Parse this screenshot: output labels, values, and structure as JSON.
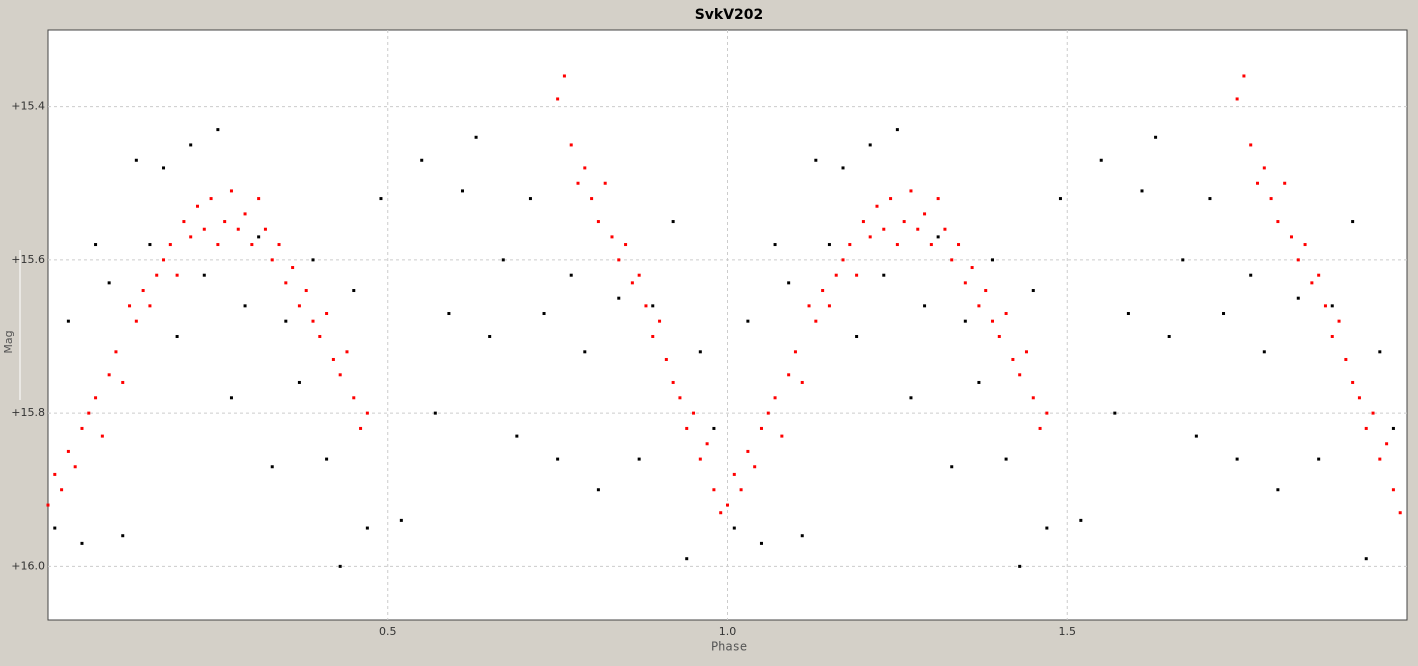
{
  "chart_data": {
    "type": "scatter",
    "title": "SvkV202",
    "x_label": "Phase",
    "y_label": "Mag",
    "xlim": [
      0,
      2
    ],
    "ylim": [
      15.3,
      16.07
    ],
    "y_inverted": true,
    "grid": true,
    "xticks": [
      0.5,
      {
        "value": 1.0,
        "label": "1.0"
      },
      1.5
    ],
    "yticks": [
      {
        "value": 15.4,
        "label": "+15.4"
      },
      {
        "value": 15.6,
        "label": "+15.6"
      },
      {
        "value": 15.8,
        "label": "+15.8"
      },
      {
        "value": 16.0,
        "label": "+16.0"
      }
    ],
    "series": [
      {
        "color": "#000000",
        "x": [
          0.01,
          0.03,
          0.05,
          0.07,
          0.09,
          0.11,
          0.13,
          0.15,
          0.17,
          0.19,
          0.21,
          0.23,
          0.25,
          0.27,
          0.29,
          0.31,
          0.33,
          0.35,
          0.37,
          0.39,
          0.41,
          0.43,
          0.45,
          0.47,
          0.49,
          0.52,
          0.55,
          0.57,
          0.59,
          0.61,
          0.63,
          0.65,
          0.67,
          0.69,
          0.71,
          0.73,
          0.75,
          0.77,
          0.79,
          0.81,
          0.84,
          0.87,
          0.89,
          0.92,
          0.94,
          0.96,
          0.98,
          1.01,
          1.03,
          1.05,
          1.07,
          1.09,
          1.11,
          1.13,
          1.15,
          1.17,
          1.19,
          1.21,
          1.23,
          1.25,
          1.27,
          1.29,
          1.31,
          1.33,
          1.35,
          1.37,
          1.39,
          1.41,
          1.43,
          1.45,
          1.47,
          1.49,
          1.52,
          1.55,
          1.57,
          1.59,
          1.61,
          1.63,
          1.65,
          1.67,
          1.69,
          1.71,
          1.73,
          1.75,
          1.77,
          1.79,
          1.81,
          1.84,
          1.87,
          1.89,
          1.92,
          1.94,
          1.96,
          1.98
        ],
        "values": [
          15.95,
          15.68,
          15.97,
          15.58,
          15.63,
          15.96,
          15.47,
          15.58,
          15.48,
          15.7,
          15.45,
          15.62,
          15.43,
          15.78,
          15.66,
          15.57,
          15.87,
          15.68,
          15.76,
          15.6,
          15.86,
          16.0,
          15.64,
          15.95,
          15.52,
          15.94,
          15.47,
          15.8,
          15.67,
          15.51,
          15.44,
          15.7,
          15.6,
          15.83,
          15.52,
          15.67,
          15.86,
          15.62,
          15.72,
          15.9,
          15.65,
          15.86,
          15.66,
          15.55,
          15.99,
          15.72,
          15.82,
          15.95,
          15.68,
          15.97,
          15.58,
          15.63,
          15.96,
          15.47,
          15.58,
          15.48,
          15.7,
          15.45,
          15.62,
          15.43,
          15.78,
          15.66,
          15.57,
          15.87,
          15.68,
          15.76,
          15.6,
          15.86,
          16.0,
          15.64,
          15.95,
          15.52,
          15.94,
          15.47,
          15.8,
          15.67,
          15.51,
          15.44,
          15.7,
          15.6,
          15.83,
          15.52,
          15.67,
          15.86,
          15.62,
          15.72,
          15.9,
          15.65,
          15.86,
          15.66,
          15.55,
          15.99,
          15.72,
          15.82
        ]
      },
      {
        "color": "#ff0000",
        "x": [
          0.0,
          0.01,
          0.02,
          0.03,
          0.04,
          0.05,
          0.06,
          0.07,
          0.08,
          0.09,
          0.1,
          0.11,
          0.12,
          0.13,
          0.14,
          0.15,
          0.16,
          0.17,
          0.18,
          0.19,
          0.2,
          0.21,
          0.22,
          0.23,
          0.24,
          0.25,
          0.26,
          0.27,
          0.28,
          0.29,
          0.3,
          0.31,
          0.32,
          0.33,
          0.34,
          0.35,
          0.36,
          0.37,
          0.38,
          0.39,
          0.4,
          0.41,
          0.42,
          0.43,
          0.44,
          0.45,
          0.46,
          0.47,
          0.75,
          0.76,
          0.77,
          0.78,
          0.79,
          0.8,
          0.81,
          0.82,
          0.83,
          0.84,
          0.85,
          0.86,
          0.87,
          0.88,
          0.89,
          0.9,
          0.91,
          0.92,
          0.93,
          0.94,
          0.95,
          0.96,
          0.97,
          0.98,
          0.99,
          1.0,
          1.01,
          1.02,
          1.03,
          1.04,
          1.05,
          1.06,
          1.07,
          1.08,
          1.09,
          1.1,
          1.11,
          1.12,
          1.13,
          1.14,
          1.15,
          1.16,
          1.17,
          1.18,
          1.19,
          1.2,
          1.21,
          1.22,
          1.23,
          1.24,
          1.25,
          1.26,
          1.27,
          1.28,
          1.29,
          1.3,
          1.31,
          1.32,
          1.33,
          1.34,
          1.35,
          1.36,
          1.37,
          1.38,
          1.39,
          1.4,
          1.41,
          1.42,
          1.43,
          1.44,
          1.45,
          1.46,
          1.47,
          1.75,
          1.76,
          1.77,
          1.78,
          1.79,
          1.8,
          1.81,
          1.82,
          1.83,
          1.84,
          1.85,
          1.86,
          1.87,
          1.88,
          1.89,
          1.9,
          1.91,
          1.92,
          1.93,
          1.94,
          1.95,
          1.96,
          1.97,
          1.98,
          1.99
        ],
        "values": [
          15.92,
          15.88,
          15.9,
          15.85,
          15.87,
          15.82,
          15.8,
          15.78,
          15.83,
          15.75,
          15.72,
          15.76,
          15.66,
          15.68,
          15.64,
          15.66,
          15.62,
          15.6,
          15.58,
          15.62,
          15.55,
          15.57,
          15.53,
          15.56,
          15.52,
          15.58,
          15.55,
          15.51,
          15.56,
          15.54,
          15.58,
          15.52,
          15.56,
          15.6,
          15.58,
          15.63,
          15.61,
          15.66,
          15.64,
          15.68,
          15.7,
          15.67,
          15.73,
          15.75,
          15.72,
          15.78,
          15.82,
          15.8,
          15.39,
          15.36,
          15.45,
          15.5,
          15.48,
          15.52,
          15.55,
          15.5,
          15.57,
          15.6,
          15.58,
          15.63,
          15.62,
          15.66,
          15.7,
          15.68,
          15.73,
          15.76,
          15.78,
          15.82,
          15.8,
          15.86,
          15.84,
          15.9,
          15.93,
          15.92,
          15.88,
          15.9,
          15.85,
          15.87,
          15.82,
          15.8,
          15.78,
          15.83,
          15.75,
          15.72,
          15.76,
          15.66,
          15.68,
          15.64,
          15.66,
          15.62,
          15.6,
          15.58,
          15.62,
          15.55,
          15.57,
          15.53,
          15.56,
          15.52,
          15.58,
          15.55,
          15.51,
          15.56,
          15.54,
          15.58,
          15.52,
          15.56,
          15.6,
          15.58,
          15.63,
          15.61,
          15.66,
          15.64,
          15.68,
          15.7,
          15.67,
          15.73,
          15.75,
          15.72,
          15.78,
          15.82,
          15.8,
          15.39,
          15.36,
          15.45,
          15.5,
          15.48,
          15.52,
          15.55,
          15.5,
          15.57,
          15.6,
          15.58,
          15.63,
          15.62,
          15.66,
          15.7,
          15.68,
          15.73,
          15.76,
          15.78,
          15.82,
          15.8,
          15.86,
          15.84,
          15.9,
          15.93
        ]
      }
    ]
  }
}
